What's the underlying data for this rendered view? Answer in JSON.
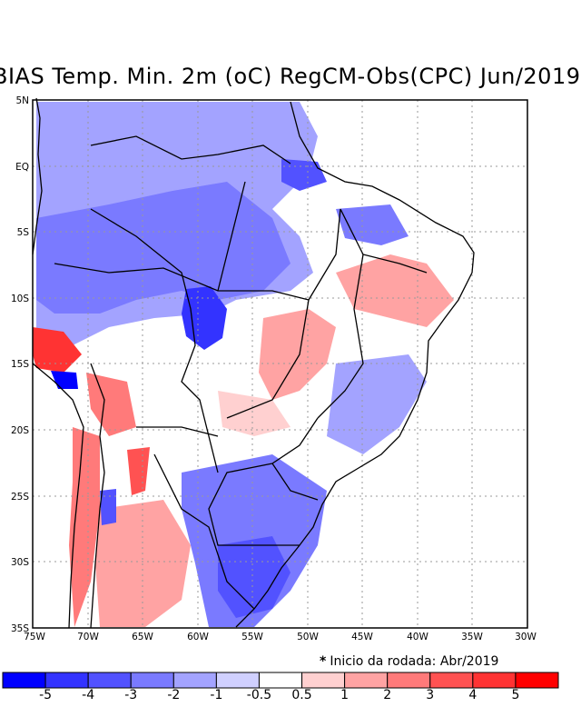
{
  "title": "BIAS Temp. Min. 2m (oC) RegCM-Obs(CPC) Jun/2019",
  "map": {
    "lon_range": [
      -75,
      -30
    ],
    "lat_range": [
      -35,
      5
    ],
    "lon_ticks": [
      "75W",
      "70W",
      "65W",
      "60W",
      "55W",
      "50W",
      "45W",
      "40W",
      "35W",
      "30W"
    ],
    "lat_ticks": [
      "5N",
      "EQ",
      "5S",
      "10S",
      "15S",
      "20S",
      "25S",
      "30S",
      "35S"
    ]
  },
  "note": {
    "star": "*",
    "text": "Inicio da rodada: Abr/2019"
  },
  "colorbar": {
    "colors": [
      "#0000ff",
      "#3333ff",
      "#5252ff",
      "#7a7aff",
      "#a3a3ff",
      "#d0d0ff",
      "#ffffff",
      "#ffd0d0",
      "#ffa3a3",
      "#ff7a7a",
      "#ff5252",
      "#ff3333",
      "#ff0000"
    ],
    "labels": [
      "-5",
      "-4",
      "-3",
      "-2",
      "-1",
      "-0.5",
      "0.5",
      "1",
      "2",
      "3",
      "4",
      "5"
    ]
  },
  "colors": {
    "grid": "#9a9a9a",
    "border": "#000000"
  }
}
